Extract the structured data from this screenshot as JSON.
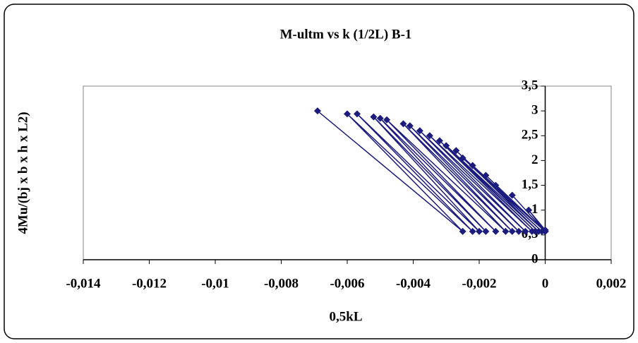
{
  "chart_data": {
    "type": "line",
    "title": "M-ultm vs k (1/2L) B-1",
    "x_label": "0,5kL",
    "y_label": "4Mu/(bj x b x h x L2)",
    "color": "#1c1c7e",
    "x": [
      -0.0069,
      -0.0025,
      -0.006,
      -0.0022,
      -0.0057,
      -0.002,
      -0.0052,
      -0.0018,
      -0.005,
      -0.0015,
      -0.0048,
      -0.0012,
      -0.0043,
      -0.001,
      -0.0041,
      -0.0008,
      -0.0038,
      -0.0006,
      -0.0035,
      -0.0004,
      -0.0032,
      -0.0003,
      -0.003,
      -0.0002,
      -0.0027,
      -0.0001,
      -0.0025,
      0,
      -0.0022,
      0,
      -0.0018,
      0,
      -0.0015,
      0,
      -0.001,
      0,
      -0.0005,
      0
    ],
    "values": [
      3.0,
      0.57,
      2.94,
      0.57,
      2.94,
      0.57,
      2.88,
      0.57,
      2.85,
      0.57,
      2.82,
      0.57,
      2.74,
      0.57,
      2.7,
      0.57,
      2.6,
      0.57,
      2.5,
      0.57,
      2.4,
      0.57,
      2.3,
      0.57,
      2.2,
      0.57,
      2.05,
      0.57,
      1.9,
      0.57,
      1.7,
      0.57,
      1.5,
      0.57,
      1.3,
      0.57,
      1.0,
      0.6
    ],
    "xlim": [
      -0.014,
      0.002
    ],
    "xticks": [
      {
        "value": -0.014,
        "label": "-0,014"
      },
      {
        "value": -0.012,
        "label": "-0,012"
      },
      {
        "value": -0.01,
        "label": "-0,01"
      },
      {
        "value": -0.008,
        "label": "-0,008"
      },
      {
        "value": -0.006,
        "label": "-0,006"
      },
      {
        "value": -0.004,
        "label": "-0,004"
      },
      {
        "value": -0.002,
        "label": "-0,002"
      },
      0,
      {
        "value": 0.002,
        "label": "0,002"
      }
    ],
    "ylim": [
      0,
      3.5
    ],
    "yticks": [
      0,
      {
        "value": 0.5,
        "label": "0,5"
      },
      1,
      {
        "value": 1.5,
        "label": "1,5"
      },
      2,
      {
        "value": 2.5,
        "label": "2,5"
      },
      3,
      {
        "value": 3.5,
        "label": "3,5"
      }
    ]
  }
}
